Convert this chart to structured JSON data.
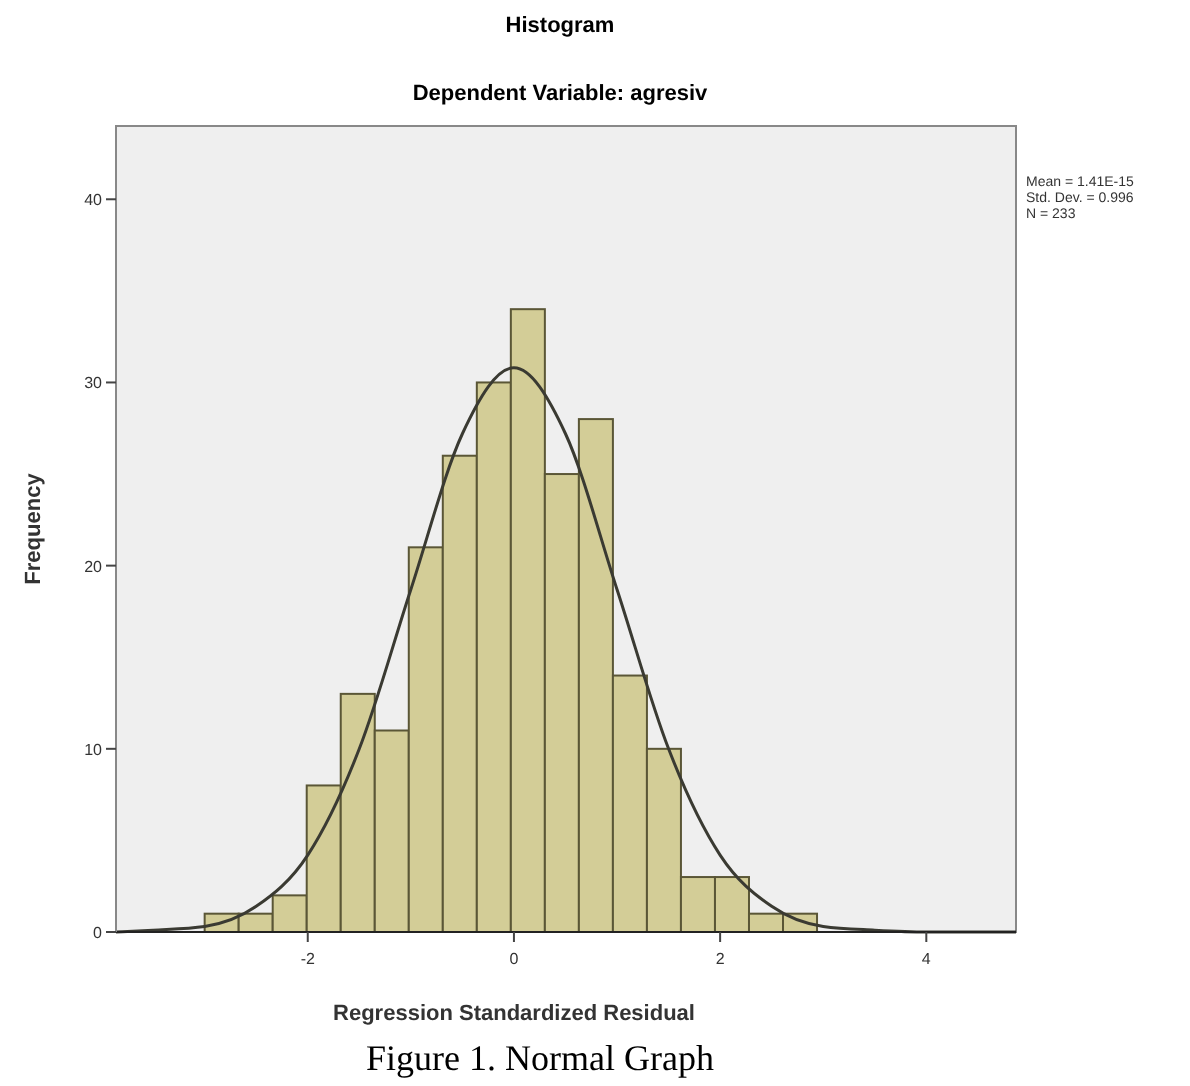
{
  "chart_data": {
    "type": "histogram",
    "title": "Histogram",
    "subtitle": "Dependent Variable: agresiv",
    "xlabel": "Regression Standardized Residual",
    "ylabel": "Frequency",
    "bins": [
      -3.0,
      -2.67,
      -2.34,
      -2.01,
      -1.68,
      -1.35,
      -1.02,
      -0.69,
      -0.36,
      -0.03,
      0.3,
      0.63,
      0.96,
      1.29,
      1.62,
      1.95,
      2.28,
      2.61,
      2.94
    ],
    "values": [
      1,
      1,
      2,
      8,
      13,
      11,
      21,
      26,
      30,
      34,
      25,
      28,
      14,
      10,
      3,
      3,
      1,
      1
    ],
    "color": "#d3cd97",
    "series": [
      {
        "type": "line",
        "color": "#3a3a32",
        "x": [
          -3.86,
          -3.5,
          -3,
          -2.5,
          -2,
          -1.5,
          -1,
          -0.5,
          0,
          0.5,
          1,
          1.5,
          2,
          2.5,
          3,
          3.5,
          4,
          4.5,
          4.87
        ],
        "values": [
          0,
          0.1,
          0.3,
          1.4,
          4.2,
          10,
          18.7,
          27.2,
          30.8,
          27.2,
          18.7,
          10,
          4.2,
          1.4,
          0.3,
          0.1,
          0,
          0,
          0
        ]
      }
    ],
    "xlim": [
      -3.86,
      4.87
    ],
    "ylim": [
      0,
      44
    ],
    "xticks": [
      -2,
      0,
      2,
      4
    ],
    "yticks": [
      0,
      10,
      20,
      30,
      40
    ],
    "grid": false,
    "marker": "none",
    "line_style": "solid",
    "annotations": [
      "Mean = 1.41E-15",
      "Std. Dev. = 0.996",
      "N = 233",
      "Figure 1. Normal Graph"
    ]
  }
}
